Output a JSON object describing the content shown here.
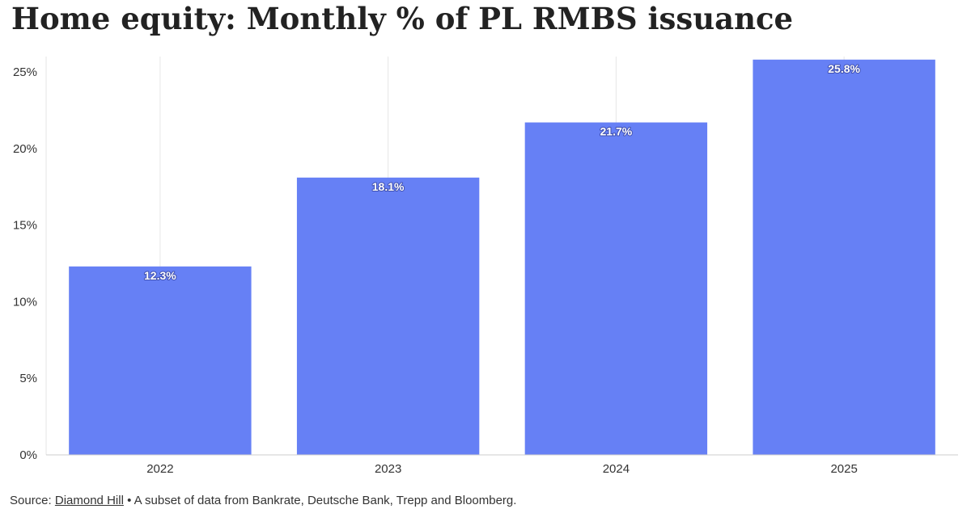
{
  "title": "Home equity: Monthly % of PL RMBS issuance",
  "footer": {
    "source_prefix": "Source:",
    "source_link": "Diamond Hill",
    "note": "• A subset of data from Bankrate, Deutsche Bank, Trepp and Bloomberg."
  },
  "colors": {
    "bar": "#6680f5",
    "grid": "#e6e6e6",
    "axis": "#cccccc"
  },
  "chart_data": {
    "type": "bar",
    "categories": [
      "2022",
      "2023",
      "2024",
      "2025"
    ],
    "values": [
      12.3,
      18.1,
      21.7,
      25.8
    ],
    "value_labels": [
      "12.3%",
      "18.1%",
      "21.7%",
      "25.8%"
    ],
    "title": "Home equity: Monthly % of PL RMBS issuance",
    "xlabel": "",
    "ylabel": "",
    "ylim": [
      0,
      26
    ],
    "yticks": [
      0,
      5,
      10,
      15,
      20,
      25
    ],
    "ytick_labels": [
      "0%",
      "5%",
      "10%",
      "15%",
      "20%",
      "25%"
    ],
    "grid": "vertical",
    "legend": "none"
  }
}
